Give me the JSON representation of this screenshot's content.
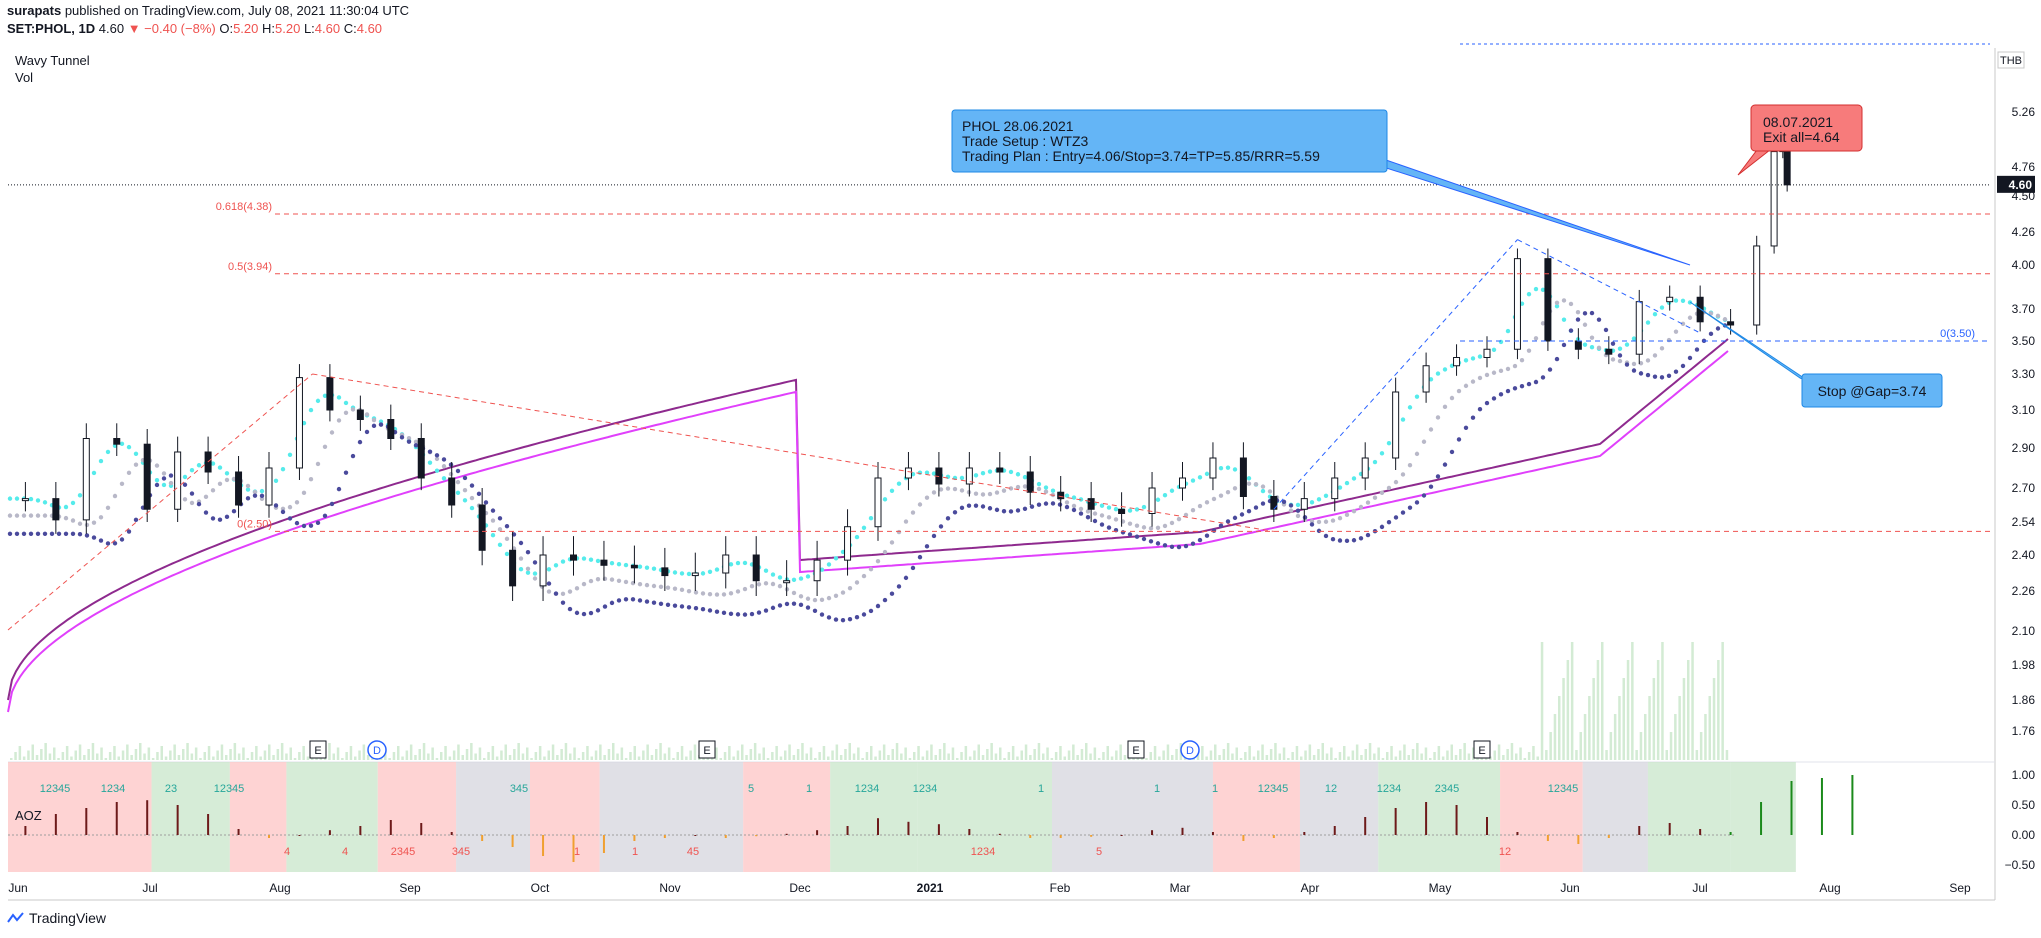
{
  "header": {
    "author": "surapats",
    "published": "published on TradingView.com, July 08, 2021 11:30:04 UTC",
    "symbol": "SET:PHOL, 1D",
    "last": "4.60",
    "change": "▼ −0.40 (−8%)",
    "open_label": "O:",
    "open": "5.20",
    "high_label": "H:",
    "high": "5.20",
    "low_label": "L:",
    "low": "4.60",
    "close_label": "C:",
    "close": "4.60"
  },
  "legend": {
    "indicator": "Wavy Tunnel",
    "volume": "Vol",
    "oscillator": "AOZ"
  },
  "footer": {
    "brand": "TradingView"
  },
  "colors": {
    "up": "#131722",
    "down": "#131722",
    "fib": "#ef5350",
    "fib2": "#2962ff",
    "wave1": "#55ebeb",
    "wave2": "#b8b8c8",
    "wave3": "#4a4a9c",
    "ema1": "#8e2a8e",
    "ema2": "#e040fb",
    "callout_blue": "#64b5f6",
    "callout_red": "#f77b7b"
  },
  "chart_data": {
    "type": "candlestick",
    "currency": "THB",
    "last_price": "4.60",
    "price_ticks": [
      "5.26",
      "4.76",
      "4.50",
      "4.26",
      "4.00",
      "3.70",
      "3.50",
      "3.30",
      "3.10",
      "2.90",
      "2.70",
      "2.54",
      "2.40",
      "2.26",
      "2.10",
      "1.98",
      "1.86",
      "1.76"
    ],
    "osc_ticks": [
      "1.00",
      "0.50",
      "0.00",
      "−0.50"
    ],
    "x_ticks": [
      "Jun",
      "Jul",
      "Aug",
      "Sep",
      "Oct",
      "Nov",
      "Dec",
      "2021",
      "Feb",
      "Mar",
      "Apr",
      "May",
      "Jun",
      "Jul",
      "Aug",
      "Sep"
    ],
    "fib_levels": [
      {
        "label": "0.618(4.38)",
        "value": 4.38
      },
      {
        "label": "0.5(3.94)",
        "value": 3.94
      },
      {
        "label": "0(2.50)",
        "value": 2.5
      },
      {
        "label": "0(3.50)",
        "value": 3.5
      }
    ],
    "events": [
      {
        "label": "E",
        "date": "2020-08-12"
      },
      {
        "label": "D",
        "date": "2020-08-26"
      },
      {
        "label": "E",
        "date": "2020-11-10"
      },
      {
        "label": "E",
        "date": "2021-02-27"
      },
      {
        "label": "D",
        "date": "2021-03-10"
      },
      {
        "label": "E",
        "date": "2021-06-08"
      }
    ],
    "osc_labels": [
      {
        "text": "12345",
        "side": "up"
      },
      {
        "text": "1234",
        "side": "up"
      },
      {
        "text": "23",
        "side": "up"
      },
      {
        "text": "12345",
        "side": "up"
      },
      {
        "text": "4",
        "side": "down"
      },
      {
        "text": "4",
        "side": "down"
      },
      {
        "text": "2345",
        "side": "down"
      },
      {
        "text": "345",
        "side": "down"
      },
      {
        "text": "345",
        "side": "up"
      },
      {
        "text": "1",
        "side": "down"
      },
      {
        "text": "1",
        "side": "down"
      },
      {
        "text": "45",
        "side": "down"
      },
      {
        "text": "5",
        "side": "up"
      },
      {
        "text": "1",
        "side": "up"
      },
      {
        "text": "1234",
        "side": "up"
      },
      {
        "text": "1234",
        "side": "up"
      },
      {
        "text": "1234",
        "side": "down"
      },
      {
        "text": "1",
        "side": "up"
      },
      {
        "text": "5",
        "side": "down"
      },
      {
        "text": "1",
        "side": "up"
      },
      {
        "text": "1",
        "side": "up"
      },
      {
        "text": "12345",
        "side": "up"
      },
      {
        "text": "12",
        "side": "up"
      },
      {
        "text": "1234",
        "side": "up"
      },
      {
        "text": "2345",
        "side": "up"
      },
      {
        "text": "12",
        "side": "down"
      },
      {
        "text": "12345",
        "side": "up"
      }
    ],
    "callouts": [
      {
        "lines": [
          "PHOL 28.06.2021",
          "Trade Setup : WTZ3",
          "Trading Plan : Entry=4.06/Stop=3.74=TP=5.85/RRR=5.59"
        ]
      },
      {
        "lines": [
          "08.07.2021",
          "Exit all=4.64"
        ]
      },
      {
        "lines": [
          "Stop @Gap=3.74"
        ]
      }
    ],
    "price_path": [
      {
        "date": "2020-05-29",
        "close": 2.65
      },
      {
        "date": "2020-06-05",
        "close": 2.55
      },
      {
        "date": "2020-06-12",
        "close": 2.95
      },
      {
        "date": "2020-06-19",
        "close": 2.92
      },
      {
        "date": "2020-06-26",
        "close": 2.6
      },
      {
        "date": "2020-07-03",
        "close": 2.88
      },
      {
        "date": "2020-07-10",
        "close": 2.78
      },
      {
        "date": "2020-07-17",
        "close": 2.62
      },
      {
        "date": "2020-07-24",
        "close": 2.8
      },
      {
        "date": "2020-07-31",
        "close": 3.28
      },
      {
        "date": "2020-08-07",
        "close": 3.1
      },
      {
        "date": "2020-08-14",
        "close": 3.05
      },
      {
        "date": "2020-08-21",
        "close": 2.95
      },
      {
        "date": "2020-08-28",
        "close": 2.75
      },
      {
        "date": "2020-09-04",
        "close": 2.62
      },
      {
        "date": "2020-09-11",
        "close": 2.42
      },
      {
        "date": "2020-09-18",
        "close": 2.28
      },
      {
        "date": "2020-09-25",
        "close": 2.4
      },
      {
        "date": "2020-10-02",
        "close": 2.38
      },
      {
        "date": "2020-10-09",
        "close": 2.36
      },
      {
        "date": "2020-10-16",
        "close": 2.35
      },
      {
        "date": "2020-10-23",
        "close": 2.32
      },
      {
        "date": "2020-10-30",
        "close": 2.33
      },
      {
        "date": "2020-11-06",
        "close": 2.4
      },
      {
        "date": "2020-11-13",
        "close": 2.3
      },
      {
        "date": "2020-11-20",
        "close": 2.3
      },
      {
        "date": "2020-11-27",
        "close": 2.38
      },
      {
        "date": "2020-12-04",
        "close": 2.52
      },
      {
        "date": "2020-12-11",
        "close": 2.75
      },
      {
        "date": "2020-12-18",
        "close": 2.8
      },
      {
        "date": "2020-12-25",
        "close": 2.72
      },
      {
        "date": "2021-01-01",
        "close": 2.8
      },
      {
        "date": "2021-01-08",
        "close": 2.78
      },
      {
        "date": "2021-01-15",
        "close": 2.68
      },
      {
        "date": "2021-01-22",
        "close": 2.65
      },
      {
        "date": "2021-01-29",
        "close": 2.6
      },
      {
        "date": "2021-02-05",
        "close": 2.58
      },
      {
        "date": "2021-02-12",
        "close": 2.7
      },
      {
        "date": "2021-02-19",
        "close": 2.75
      },
      {
        "date": "2021-02-26",
        "close": 2.85
      },
      {
        "date": "2021-03-05",
        "close": 2.66
      },
      {
        "date": "2021-03-12",
        "close": 2.6
      },
      {
        "date": "2021-03-19",
        "close": 2.65
      },
      {
        "date": "2021-03-26",
        "close": 2.75
      },
      {
        "date": "2021-04-02",
        "close": 2.85
      },
      {
        "date": "2021-04-09",
        "close": 3.2
      },
      {
        "date": "2021-04-16",
        "close": 3.35
      },
      {
        "date": "2021-04-23",
        "close": 3.4
      },
      {
        "date": "2021-04-30",
        "close": 3.45
      },
      {
        "date": "2021-05-07",
        "close": 4.05
      },
      {
        "date": "2021-05-14",
        "close": 3.5
      },
      {
        "date": "2021-05-21",
        "close": 3.45
      },
      {
        "date": "2021-05-28",
        "close": 3.42
      },
      {
        "date": "2021-06-04",
        "close": 3.75
      },
      {
        "date": "2021-06-11",
        "close": 3.78
      },
      {
        "date": "2021-06-18",
        "close": 3.62
      },
      {
        "date": "2021-06-25",
        "close": 3.6
      },
      {
        "date": "2021-07-01",
        "close": 4.15
      },
      {
        "date": "2021-07-05",
        "close": 4.9
      },
      {
        "date": "2021-07-07",
        "close": 5.0
      },
      {
        "date": "2021-07-08",
        "close": 4.6
      }
    ]
  }
}
